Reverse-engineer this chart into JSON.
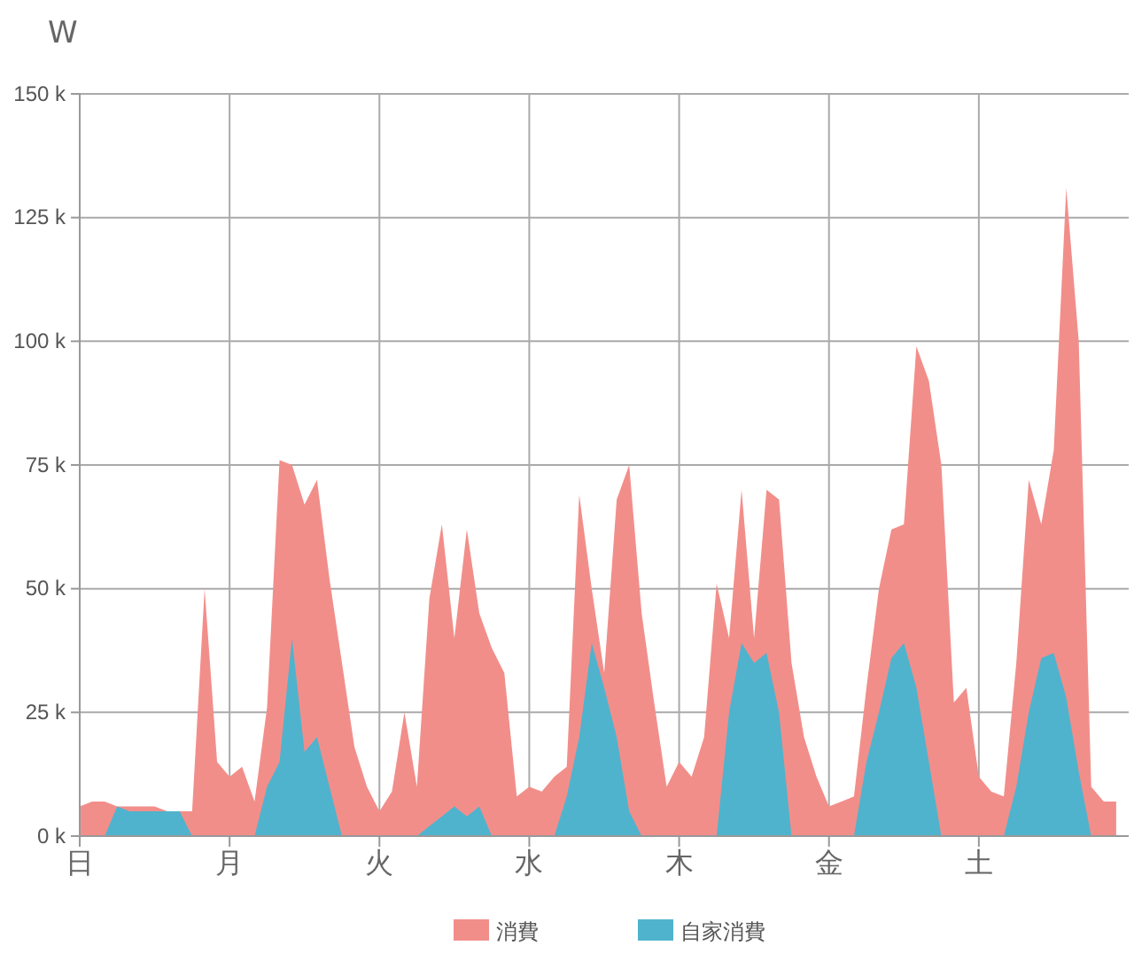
{
  "chart_data": {
    "type": "area",
    "ylabel": "W",
    "ylim": [
      0,
      150000
    ],
    "categories": [
      "日",
      null,
      null,
      null,
      null,
      null,
      null,
      null,
      null,
      null,
      null,
      null,
      "月",
      null,
      null,
      null,
      null,
      null,
      null,
      null,
      null,
      null,
      null,
      null,
      "火",
      null,
      null,
      null,
      null,
      null,
      null,
      null,
      null,
      null,
      null,
      null,
      "水",
      null,
      null,
      null,
      null,
      null,
      null,
      null,
      null,
      null,
      null,
      null,
      "木",
      null,
      null,
      null,
      null,
      null,
      null,
      null,
      null,
      null,
      null,
      null,
      "金",
      null,
      null,
      null,
      null,
      null,
      null,
      null,
      null,
      null,
      null,
      null,
      "土",
      null,
      null,
      null,
      null,
      null,
      null,
      null,
      null,
      null,
      null,
      null
    ],
    "yticks": [
      {
        "value": 0,
        "label": "0 k"
      },
      {
        "value": 25000,
        "label": "25 k"
      },
      {
        "value": 50000,
        "label": "50 k"
      },
      {
        "value": 75000,
        "label": "75 k"
      },
      {
        "value": 100000,
        "label": "100 k"
      },
      {
        "value": 125000,
        "label": "125 k"
      },
      {
        "value": 150000,
        "label": "150 k"
      }
    ],
    "grid": true,
    "legend": "bottom",
    "series": [
      {
        "name": "消費",
        "color": "#f28e8a",
        "values": [
          6000,
          7000,
          7000,
          6000,
          6000,
          6000,
          6000,
          5000,
          5000,
          5000,
          50000,
          15000,
          12000,
          14000,
          7000,
          26000,
          76000,
          75000,
          67000,
          72000,
          52000,
          35000,
          18000,
          10000,
          5000,
          9000,
          25000,
          10000,
          48000,
          63000,
          40000,
          62000,
          45000,
          38000,
          33000,
          8000,
          10000,
          9000,
          12000,
          14000,
          69000,
          50000,
          33000,
          68000,
          75000,
          45000,
          27000,
          10000,
          15000,
          12000,
          20000,
          51000,
          40000,
          70000,
          40000,
          70000,
          68000,
          35000,
          20000,
          12000,
          6000,
          7000,
          8000,
          30000,
          50000,
          62000,
          63000,
          99000,
          92000,
          75000,
          27000,
          30000,
          12000,
          9000,
          8000,
          35000,
          72000,
          63000,
          78000,
          131000,
          100000,
          10000,
          7000,
          7000
        ]
      },
      {
        "name": "自家消費",
        "color": "#4fb3cd",
        "values": [
          0,
          0,
          0,
          6000,
          5000,
          5000,
          5000,
          5000,
          5000,
          0,
          0,
          0,
          0,
          0,
          0,
          10000,
          15000,
          40000,
          17000,
          20000,
          10000,
          0,
          0,
          0,
          0,
          0,
          0,
          0,
          2000,
          4000,
          6000,
          4000,
          6000,
          0,
          0,
          0,
          0,
          0,
          0,
          8000,
          20000,
          39000,
          30000,
          20000,
          5000,
          0,
          0,
          0,
          0,
          0,
          0,
          0,
          25000,
          39000,
          35000,
          37000,
          25000,
          0,
          0,
          0,
          0,
          0,
          0,
          15000,
          25000,
          36000,
          39000,
          30000,
          15000,
          0,
          0,
          0,
          0,
          0,
          0,
          10000,
          25000,
          36000,
          37000,
          28000,
          13000,
          0,
          0,
          0
        ]
      }
    ]
  }
}
